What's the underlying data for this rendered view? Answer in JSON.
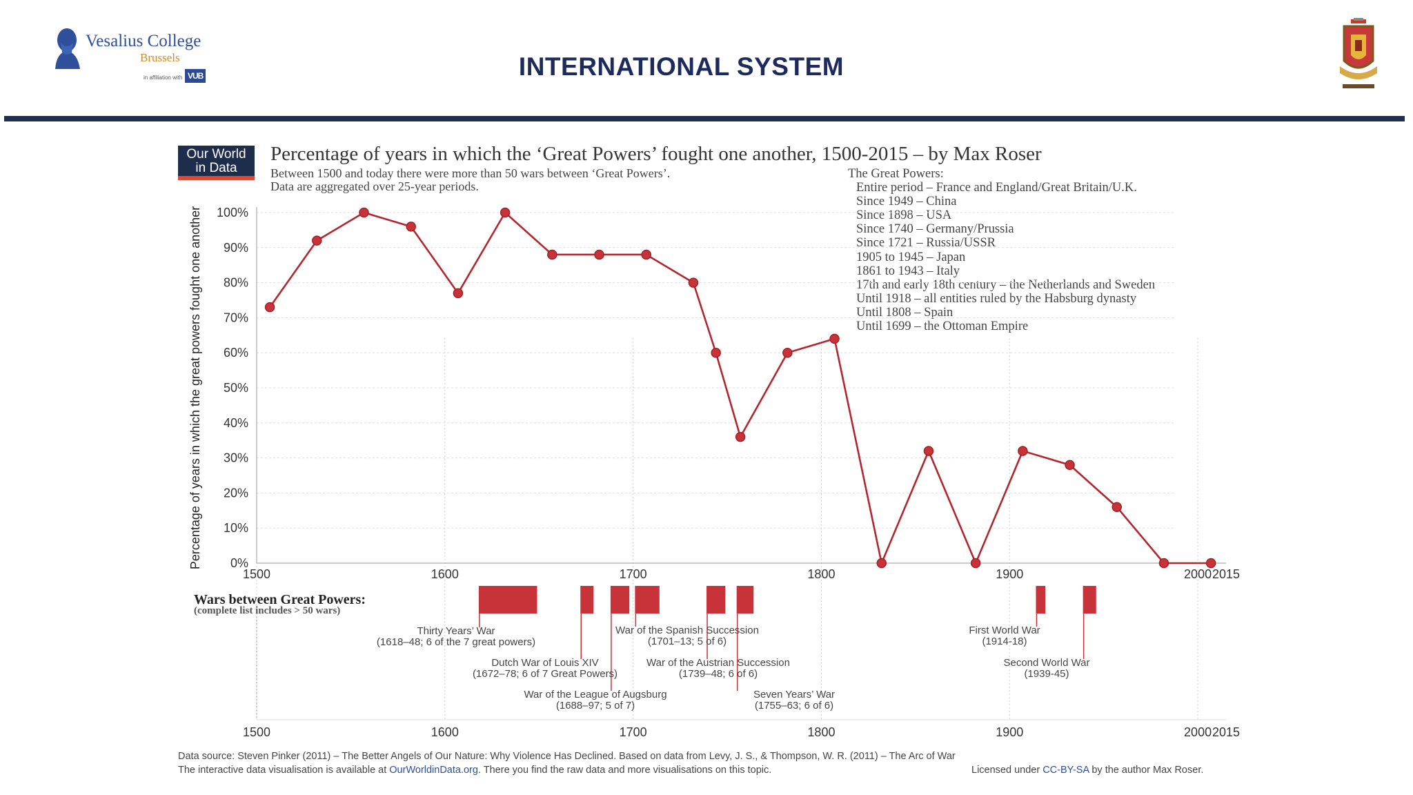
{
  "header": {
    "logo": {
      "name": "Vesalius College",
      "city": "Brussels",
      "affiliation": "in affiliation with",
      "vub": "VUB"
    },
    "title": "INTERNATIONAL SYSTEM"
  },
  "brand": {
    "line1": "Our World",
    "line2": "in Data"
  },
  "colors": {
    "accent": "#c8333a",
    "navy": "#1f2d4d",
    "header_rule": "#1f2f52"
  },
  "chart_data": {
    "type": "line",
    "title": "Percentage of years in which the ‘Great Powers’ fought one another, 1500-2015 – by Max Roser",
    "subtitle_lines": [
      "Between 1500 and today there were more than 50 wars between ‘Great Powers’.",
      "Data are aggregated over 25-year periods."
    ],
    "ylabel": "Percentage of years in which the great powers fought one another",
    "xlabel": "",
    "xlim": [
      1500,
      2015
    ],
    "ylim": [
      0,
      100
    ],
    "x_ticks": [
      "1500",
      "1600",
      "1700",
      "1800",
      "1900",
      "2000",
      "2015"
    ],
    "x_tick_values": [
      1500,
      1600,
      1700,
      1800,
      1900,
      2000,
      2015
    ],
    "y_ticks": [
      "0%",
      "10%",
      "20%",
      "30%",
      "40%",
      "50%",
      "60%",
      "70%",
      "80%",
      "90%",
      "100%"
    ],
    "y_tick_values": [
      0,
      10,
      20,
      30,
      40,
      50,
      60,
      70,
      80,
      90,
      100
    ],
    "grid": true,
    "x": [
      1507,
      1532,
      1557,
      1582,
      1607,
      1632,
      1657,
      1682,
      1707,
      1732,
      1744,
      1757,
      1782,
      1807,
      1832,
      1857,
      1882,
      1907,
      1932,
      1957,
      1982,
      2007
    ],
    "series": [
      {
        "values": [
          73,
          92,
          100,
          96,
          77,
          100,
          88,
          88,
          88,
          80,
          60,
          36,
          60,
          64,
          0,
          32,
          0,
          32,
          28,
          16,
          0,
          0
        ]
      }
    ],
    "great_powers": {
      "heading": "The Great Powers:",
      "items": [
        "Entire period – France and England/Great Britain/U.K.",
        "Since 1949 – China",
        "Since 1898 – USA",
        "Since 1740 – Germany/Prussia",
        "Since 1721 – Russia/USSR",
        "1905 to 1945 – Japan",
        "1861 to 1943 – Italy",
        "17th and early 18th century – the Netherlands and Sweden",
        "Until 1918 – all entities ruled by the Habsburg dynasty",
        "Until 1808 – Spain",
        "Until 1699 – the Ottoman Empire"
      ]
    },
    "wars_heading": "Wars between Great Powers:",
    "wars_subheading": "(complete list includes > 50 wars)",
    "wars": [
      {
        "name": "Thirty Years’ War",
        "detail": "(1618–48; 6 of the 7 great powers)",
        "start": 1618,
        "end": 1648
      },
      {
        "name": "Dutch War of Louis XIV",
        "detail": "(1672–78; 6 of 7 Great Powers)",
        "start": 1672,
        "end": 1678
      },
      {
        "name": "War of the League of Augsburg",
        "detail": "(1688–97; 5 of 7)",
        "start": 1688,
        "end": 1697
      },
      {
        "name": "War of the Spanish Succession",
        "detail": "(1701–13; 5 of 6)",
        "start": 1701,
        "end": 1713
      },
      {
        "name": "War of the Austrian Succession",
        "detail": "(1739–48; 6 of 6)",
        "start": 1739,
        "end": 1748
      },
      {
        "name": "Seven Years’ War",
        "detail": "(1755–63; 6 of 6)",
        "start": 1755,
        "end": 1763
      },
      {
        "name": "First World War",
        "detail": "(1914-18)",
        "start": 1914,
        "end": 1918
      },
      {
        "name": "Second World War",
        "detail": "(1939-45)",
        "start": 1939,
        "end": 1945
      }
    ]
  },
  "footer": {
    "source": "Data source: Steven Pinker (2011) – The Better Angels of Our Nature: Why Violence Has Declined. Based on data from Levy, J. S., & Thompson, W. R. (2011) – The Arc of War",
    "interactive_prefix": "The interactive data visualisation is available at ",
    "interactive_link": "OurWorldinData.org",
    "interactive_suffix": ". There you find the raw data and more visualisations on this topic.",
    "license_prefix": "Licensed under ",
    "license_link": "CC-BY-SA",
    "license_suffix": " by the author Max Roser."
  }
}
